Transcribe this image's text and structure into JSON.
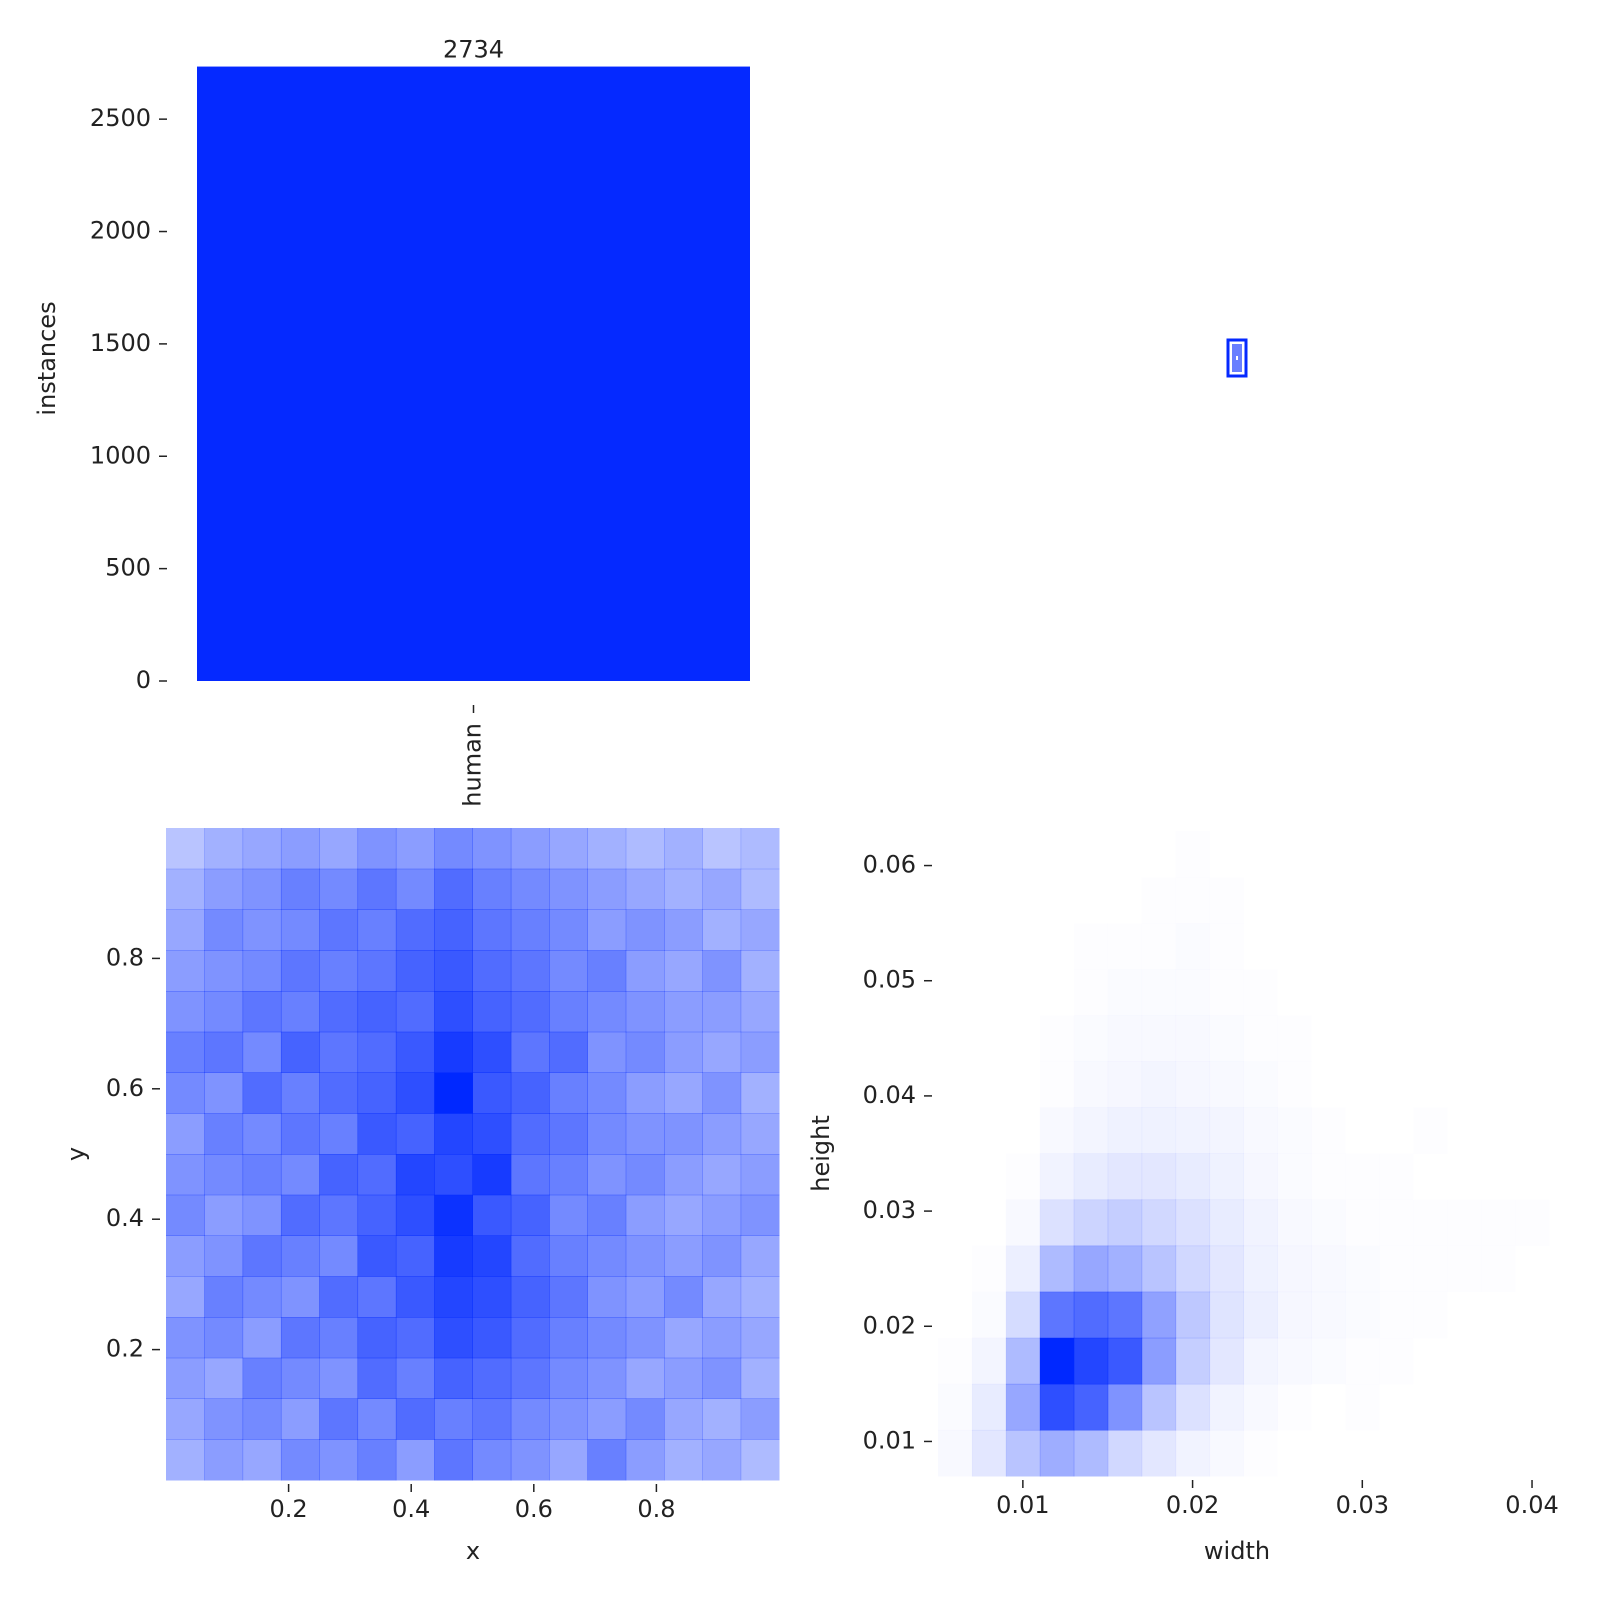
{
  "chart_data": [
    {
      "type": "bar",
      "y_label": "instances",
      "categories": [
        "human"
      ],
      "values": [
        2734
      ],
      "color": "#0529ff",
      "ylim": [
        0,
        2870
      ],
      "yticks": [
        0,
        500,
        1000,
        1500,
        2000,
        2500
      ]
    },
    {
      "type": "histogram2d",
      "x_label": "x",
      "y_label": "y",
      "color": "#0028ff",
      "xlim": [
        0,
        1
      ],
      "ylim": [
        0,
        1
      ],
      "xticks": [
        0.2,
        0.4,
        0.6,
        0.8
      ],
      "yticks": [
        0.2,
        0.4,
        0.6,
        0.8
      ],
      "x_bins": [
        0,
        0.0625,
        0.125,
        0.1875,
        0.25,
        0.3125,
        0.375,
        0.4375,
        0.5,
        0.5625,
        0.625,
        0.6875,
        0.75,
        0.8125,
        0.875,
        0.9375,
        1
      ],
      "y_bins": [
        0,
        0.0625,
        0.125,
        0.1875,
        0.25,
        0.3125,
        0.375,
        0.4375,
        0.5,
        0.5625,
        0.625,
        0.6875,
        0.75,
        0.8125,
        0.875,
        0.9375,
        1
      ],
      "counts": [
        [
          8,
          10,
          9,
          12,
          11,
          13,
          10,
          14,
          12,
          11,
          9,
          13,
          10,
          8,
          9,
          7
        ],
        [
          9,
          11,
          12,
          10,
          14,
          12,
          15,
          13,
          14,
          12,
          11,
          10,
          12,
          9,
          8,
          10
        ],
        [
          10,
          9,
          13,
          12,
          11,
          15,
          13,
          16,
          15,
          14,
          12,
          11,
          9,
          10,
          11,
          8
        ],
        [
          11,
          12,
          10,
          14,
          13,
          16,
          15,
          18,
          17,
          15,
          13,
          12,
          11,
          9,
          10,
          9
        ],
        [
          9,
          13,
          12,
          11,
          15,
          14,
          17,
          19,
          18,
          16,
          14,
          11,
          10,
          12,
          9,
          8
        ],
        [
          10,
          11,
          14,
          13,
          12,
          17,
          16,
          20,
          19,
          15,
          13,
          12,
          11,
          10,
          11,
          9
        ],
        [
          12,
          10,
          11,
          15,
          14,
          16,
          18,
          21,
          17,
          16,
          12,
          13,
          10,
          9,
          10,
          11
        ],
        [
          11,
          12,
          13,
          12,
          16,
          15,
          19,
          18,
          20,
          14,
          13,
          11,
          12,
          10,
          9,
          10
        ],
        [
          10,
          13,
          12,
          14,
          13,
          17,
          16,
          19,
          18,
          15,
          14,
          12,
          11,
          11,
          10,
          9
        ],
        [
          12,
          11,
          15,
          13,
          15,
          16,
          18,
          22,
          17,
          16,
          13,
          12,
          10,
          9,
          11,
          8
        ],
        [
          13,
          14,
          12,
          16,
          14,
          15,
          17,
          20,
          18,
          14,
          15,
          11,
          12,
          10,
          9,
          10
        ],
        [
          11,
          12,
          14,
          13,
          15,
          16,
          15,
          18,
          16,
          15,
          13,
          12,
          11,
          10,
          10,
          9
        ],
        [
          10,
          11,
          12,
          14,
          13,
          14,
          16,
          17,
          15,
          14,
          12,
          13,
          10,
          9,
          11,
          8
        ],
        [
          9,
          12,
          11,
          12,
          14,
          13,
          15,
          16,
          14,
          13,
          12,
          10,
          11,
          10,
          8,
          9
        ],
        [
          8,
          10,
          11,
          13,
          12,
          14,
          12,
          15,
          13,
          12,
          11,
          10,
          9,
          8,
          9,
          7
        ],
        [
          6,
          8,
          9,
          10,
          9,
          11,
          10,
          12,
          11,
          10,
          9,
          8,
          7,
          8,
          6,
          7
        ]
      ]
    },
    {
      "type": "histogram2d",
      "x_label": "width",
      "y_label": "height",
      "color": "#0028ff",
      "xlim": [
        0.005,
        0.041
      ],
      "ylim": [
        0.007,
        0.063
      ],
      "xticks": [
        0.01,
        0.02,
        0.03,
        0.04
      ],
      "yticks": [
        0.01,
        0.02,
        0.03,
        0.04,
        0.05,
        0.06
      ],
      "x_bins": [
        0.005,
        0.007,
        0.009,
        0.011,
        0.013,
        0.015,
        0.017,
        0.019,
        0.021,
        0.023,
        0.025,
        0.027,
        0.029,
        0.031,
        0.033,
        0.035,
        0.037,
        0.039,
        0.041
      ],
      "y_bins": [
        0.007,
        0.011,
        0.015,
        0.019,
        0.023,
        0.027,
        0.031,
        0.035,
        0.039,
        0.043,
        0.047,
        0.051,
        0.055,
        0.059,
        0.063
      ],
      "counts": [
        [
          3,
          12,
          30,
          42,
          35,
          20,
          12,
          6,
          3,
          1,
          0,
          0,
          0,
          0,
          0,
          0,
          0,
          0
        ],
        [
          2,
          10,
          45,
          90,
          80,
          55,
          30,
          15,
          6,
          3,
          1,
          0,
          1,
          0,
          0,
          0,
          0,
          0
        ],
        [
          1,
          5,
          35,
          110,
          95,
          85,
          50,
          25,
          12,
          5,
          3,
          2,
          1,
          1,
          0,
          0,
          0,
          0
        ],
        [
          0,
          2,
          18,
          70,
          75,
          70,
          48,
          28,
          14,
          8,
          4,
          3,
          2,
          1,
          1,
          0,
          0,
          0
        ],
        [
          0,
          1,
          8,
          35,
          45,
          40,
          30,
          20,
          12,
          7,
          4,
          3,
          2,
          1,
          1,
          1,
          1,
          0
        ],
        [
          0,
          0,
          3,
          15,
          22,
          25,
          20,
          15,
          10,
          6,
          3,
          2,
          1,
          1,
          1,
          1,
          1,
          1
        ],
        [
          0,
          0,
          1,
          6,
          10,
          12,
          12,
          10,
          7,
          4,
          2,
          1,
          1,
          1,
          0,
          0,
          0,
          0
        ],
        [
          0,
          0,
          0,
          3,
          5,
          7,
          7,
          6,
          5,
          3,
          2,
          1,
          0,
          0,
          1,
          0,
          0,
          0
        ],
        [
          0,
          0,
          0,
          1,
          3,
          4,
          5,
          4,
          3,
          2,
          1,
          0,
          0,
          0,
          0,
          0,
          0,
          0
        ],
        [
          0,
          0,
          0,
          1,
          2,
          3,
          3,
          3,
          2,
          1,
          1,
          0,
          0,
          0,
          0,
          0,
          0,
          0
        ],
        [
          0,
          0,
          0,
          0,
          1,
          2,
          2,
          2,
          1,
          1,
          0,
          0,
          0,
          0,
          0,
          0,
          0,
          0
        ],
        [
          0,
          0,
          0,
          0,
          1,
          1,
          1,
          2,
          1,
          0,
          0,
          0,
          0,
          0,
          0,
          0,
          0,
          0
        ],
        [
          0,
          0,
          0,
          0,
          0,
          0,
          1,
          1,
          1,
          0,
          0,
          0,
          0,
          0,
          0,
          0,
          0,
          0
        ],
        [
          0,
          0,
          0,
          0,
          0,
          0,
          0,
          1,
          0,
          0,
          0,
          0,
          0,
          0,
          0,
          0,
          0,
          0
        ]
      ]
    }
  ]
}
